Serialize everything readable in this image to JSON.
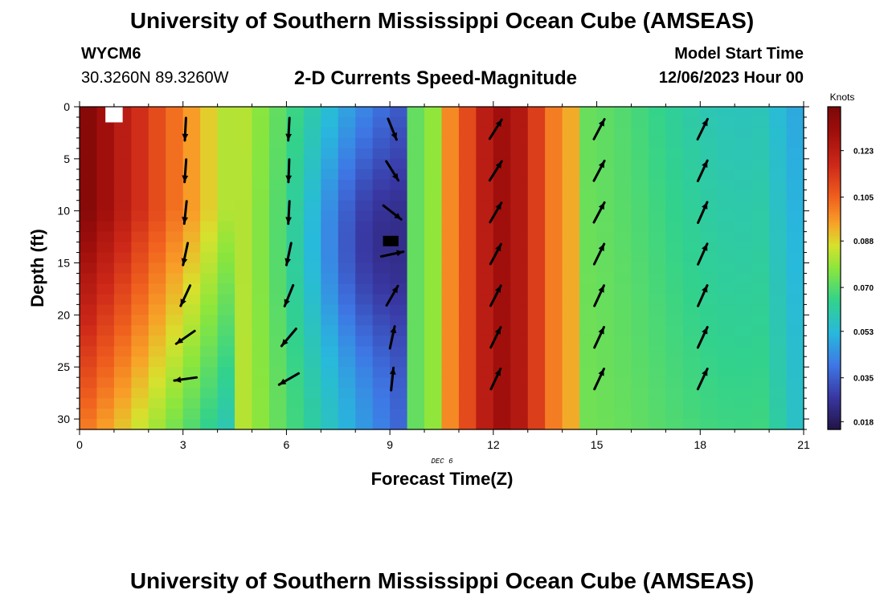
{
  "header": {
    "title": "University of Southern Mississippi Ocean Cube (AMSEAS)",
    "station": "WYCM6",
    "coords": "30.3260N  89.3260W",
    "plot_title": "2-D Currents Speed-Magnitude",
    "start_label": "Model Start Time",
    "start_value": "12/06/2023 Hour 00"
  },
  "footer": {
    "title": "University of Southern Mississippi Ocean Cube (AMSEAS)"
  },
  "colors": {
    "vector": "#000000",
    "frame": "#000000"
  },
  "chart_data": {
    "type": "heatmap",
    "title": "2-D Currents Speed-Magnitude",
    "xlabel": "Forecast Time(Z)",
    "ylabel": "Depth (ft)",
    "date_label": "DEC 6",
    "xlim": [
      0,
      21
    ],
    "ylim": [
      31,
      0
    ],
    "x_ticks": [
      0,
      3,
      6,
      9,
      12,
      15,
      18,
      21
    ],
    "y_ticks": [
      0,
      5,
      10,
      15,
      20,
      25,
      30
    ],
    "colorbar": {
      "label": "Knots",
      "range": [
        0.015,
        0.14
      ],
      "ticks": [
        "0.123",
        "0.105",
        "0.088",
        "0.070",
        "0.053",
        "0.035",
        "0.018"
      ]
    },
    "arrow_times": [
      3,
      6,
      9,
      12,
      15,
      18
    ],
    "arrow_depths": [
      2,
      6,
      10,
      14,
      18,
      22,
      26
    ],
    "arrow_angles_deg": [
      [
        -93,
        -94,
        -96,
        -102,
        -115,
        -145,
        -172
      ],
      [
        -93,
        -92,
        -93,
        -102,
        -112,
        -130,
        -150
      ],
      [
        -68,
        -58,
        -38,
        12,
        60,
        78,
        84
      ],
      [
        58,
        58,
        60,
        62,
        63,
        64,
        65
      ],
      [
        62,
        62,
        62,
        64,
        65,
        65,
        65
      ],
      [
        64,
        65,
        66,
        66,
        66,
        65,
        65
      ]
    ]
  }
}
